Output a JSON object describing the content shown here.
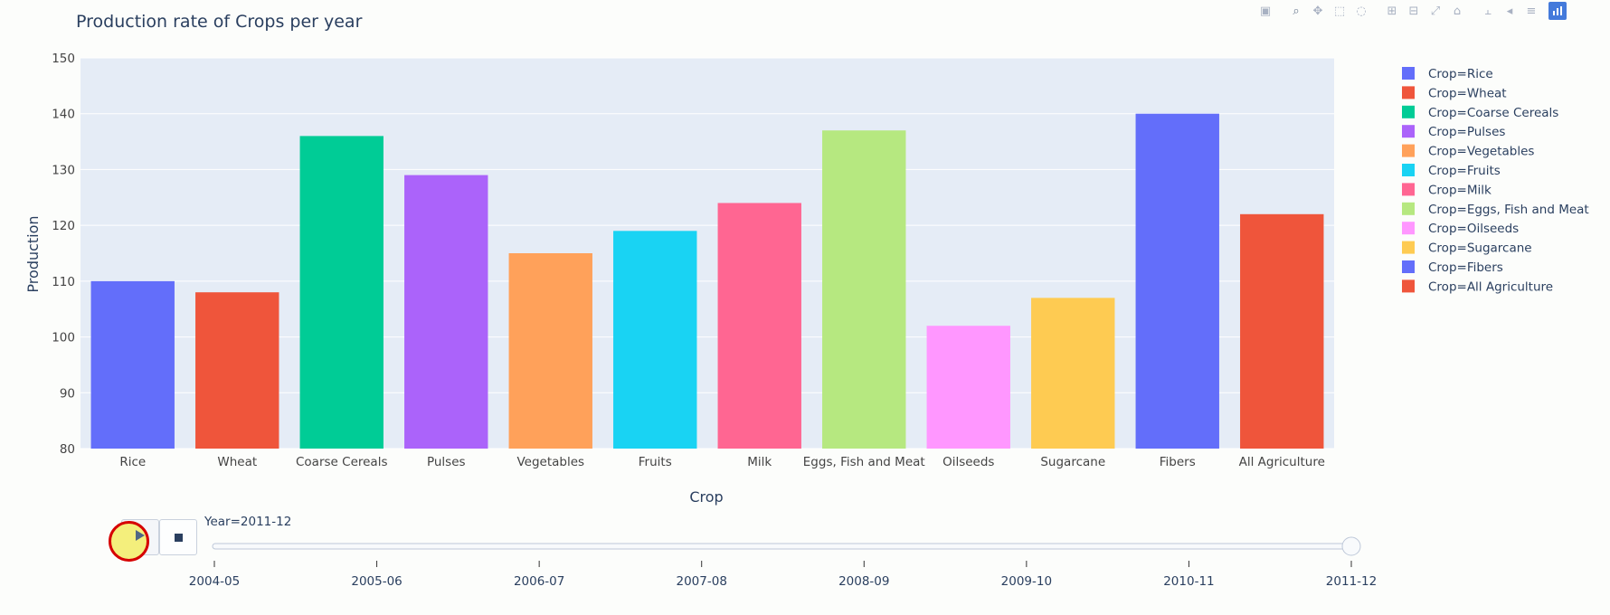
{
  "chart_data": {
    "type": "bar",
    "title": "Production rate of Crops per year",
    "xlabel": "Crop",
    "ylabel": "Production",
    "ylim": [
      80,
      150
    ],
    "yticks": [
      80,
      90,
      100,
      110,
      120,
      130,
      140,
      150
    ],
    "grid": true,
    "legend_position": "right",
    "categories": [
      "Rice",
      "Wheat",
      "Coarse Cereals",
      "Pulses",
      "Vegetables",
      "Fruits",
      "Milk",
      "Eggs, Fish and Meat",
      "Oilseeds",
      "Sugarcane",
      "Fibers",
      "All Agriculture"
    ],
    "values": [
      110,
      108,
      136,
      129,
      115,
      119,
      124,
      137,
      102,
      107,
      140,
      122
    ],
    "colors": [
      "#636efa",
      "#ef553b",
      "#00cc96",
      "#ab63fa",
      "#ffa15a",
      "#19d3f3",
      "#ff6692",
      "#b6e880",
      "#ff97ff",
      "#fecb52",
      "#636efa",
      "#ef553b"
    ],
    "legend": [
      "Crop=Rice",
      "Crop=Wheat",
      "Crop=Coarse Cereals",
      "Crop=Pulses",
      "Crop=Vegetables",
      "Crop=Fruits",
      "Crop=Milk",
      "Crop=Eggs, Fish and Meat",
      "Crop=Oilseeds",
      "Crop=Sugarcane",
      "Crop=Fibers",
      "Crop=All Agriculture"
    ],
    "plot_bg": "#e5ecf6"
  },
  "slider": {
    "current_label": "Year=2011-12",
    "steps": [
      "2004-05",
      "2005-06",
      "2006-07",
      "2007-08",
      "2008-09",
      "2009-10",
      "2010-11",
      "2011-12"
    ],
    "active_index": 7
  },
  "controls": {
    "play_icon": "play-icon",
    "stop_icon": "stop-icon"
  },
  "modebar": {
    "icons": [
      "camera-icon",
      "zoom-icon",
      "pan-icon",
      "box-select-icon",
      "lasso-icon",
      "zoom-in-icon",
      "zoom-out-icon",
      "autoscale-icon",
      "home-icon",
      "spike-lines-icon",
      "hover-closest-icon",
      "hover-compare-icon",
      "plotly-logo-icon"
    ]
  }
}
